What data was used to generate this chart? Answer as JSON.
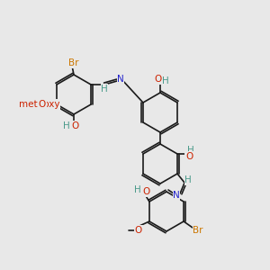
{
  "bg_color": "#e8e8e8",
  "bond_color": "#1a1a1a",
  "bond_width": 1.2,
  "atom_colors": {
    "C": "#1a1a1a",
    "H": "#4a9a8a",
    "O": "#cc2200",
    "N": "#2222cc",
    "Br": "#cc7700"
  },
  "font_size": 7.5
}
